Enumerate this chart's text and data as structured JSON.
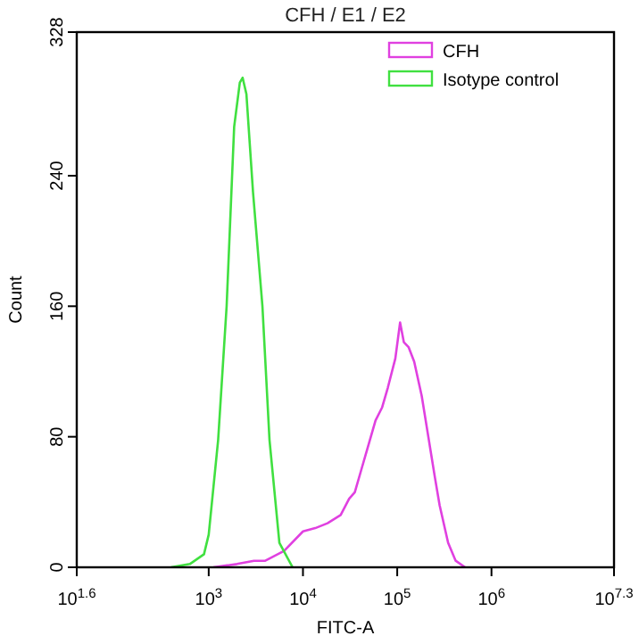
{
  "chart_data": {
    "type": "line",
    "title": "CFH / E1 / E2",
    "xlabel": "FITC-A",
    "ylabel": "Count",
    "log": "x",
    "xlim": [
      39.81,
      19952623
    ],
    "xticks": [
      {
        "value": 39.81,
        "label": "10$^{1.6}$"
      },
      {
        "value": 1000,
        "label": "10$^{3}$"
      },
      {
        "value": 10000,
        "label": "10$^{4}$"
      },
      {
        "value": 100000,
        "label": "10$^{5}$"
      },
      {
        "value": 1000000,
        "label": "10$^{6}$"
      },
      {
        "value": 19952623,
        "label": "10$^{7.3}$"
      }
    ],
    "ylim": [
      0,
      328
    ],
    "yticks": [
      0,
      80,
      160,
      240,
      328
    ],
    "legend": "top right",
    "grid": false,
    "marker": "none",
    "line_style": "solid",
    "series": [
      {
        "name": "CFH",
        "color": "#e040e0",
        "x": [
          1122,
          1995,
          3020,
          3981,
          6310,
          10000,
          13490,
          18200,
          25120,
          30900,
          35480,
          41690,
          47860,
          58880,
          69180,
          79430,
          95500,
          107200,
          117500,
          131800,
          151400,
          182000,
          213800,
          251200,
          281800,
          346700,
          416900,
          524800
        ],
        "values": [
          0,
          2,
          4,
          4,
          10,
          22,
          24,
          27,
          32,
          42,
          46,
          60,
          72,
          90,
          98,
          110,
          128,
          150,
          138,
          135,
          126,
          105,
          80,
          55,
          38,
          15,
          4,
          0
        ]
      },
      {
        "name": "Isotype control",
        "color": "#40e040",
        "x": [
          398,
          631,
          891,
          1000,
          1259,
          1549,
          1862,
          2138,
          2291,
          2512,
          2951,
          3715,
          4416,
          5623,
          7762
        ],
        "values": [
          0,
          2,
          8,
          20,
          78,
          160,
          270,
          297,
          300,
          290,
          230,
          160,
          78,
          15,
          0
        ]
      }
    ]
  }
}
